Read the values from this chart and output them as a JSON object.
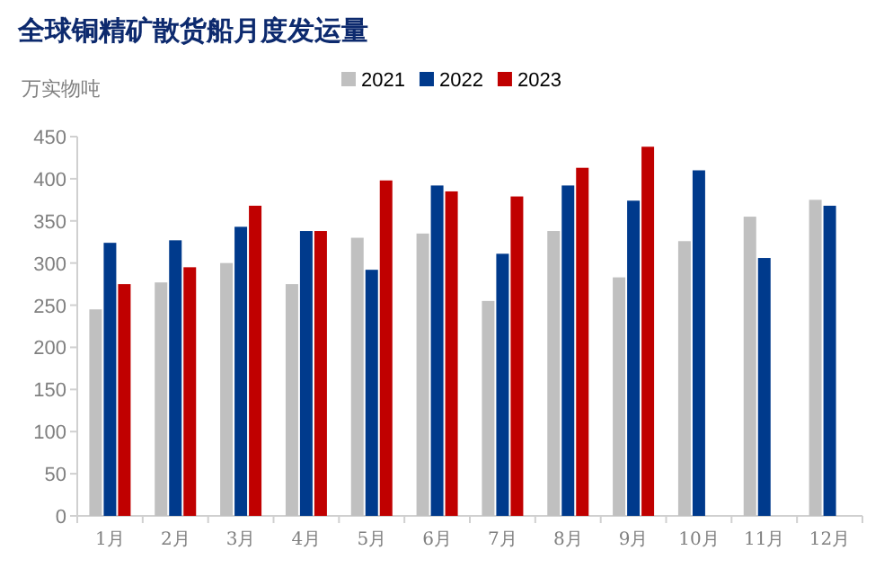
{
  "chart_data": {
    "type": "bar",
    "title": "全球铜精矿散货船月度发运量",
    "ylabel": "万实物吨",
    "categories": [
      "1月",
      "2月",
      "3月",
      "4月",
      "5月",
      "6月",
      "7月",
      "8月",
      "9月",
      "10月",
      "11月",
      "12月"
    ],
    "series": [
      {
        "name": "2021",
        "color": "#c0c0c0",
        "values": [
          245,
          277,
          300,
          275,
          330,
          335,
          255,
          338,
          283,
          326,
          355,
          375
        ]
      },
      {
        "name": "2022",
        "color": "#003a8c",
        "values": [
          324,
          327,
          343,
          338,
          292,
          392,
          311,
          392,
          374,
          410,
          306,
          368
        ]
      },
      {
        "name": "2023",
        "color": "#c00000",
        "values": [
          275,
          295,
          368,
          338,
          398,
          385,
          379,
          413,
          438,
          null,
          null,
          null
        ]
      }
    ],
    "ylim": [
      0,
      450
    ],
    "yticks": [
      0,
      50,
      100,
      150,
      200,
      250,
      300,
      350,
      400,
      450
    ],
    "grid": false,
    "legend": "top"
  }
}
